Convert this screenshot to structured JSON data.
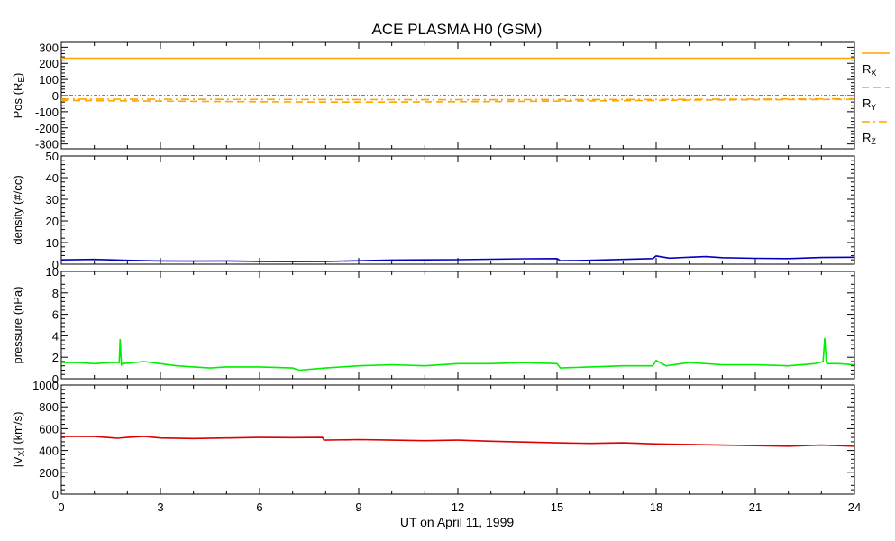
{
  "title": "ACE PLASMA H0 (GSM)",
  "xlabel": "UT on April 11, 1999",
  "x_ticks": [
    "0",
    "3",
    "6",
    "9",
    "12",
    "15",
    "18",
    "21",
    "24"
  ],
  "chart_data": [
    {
      "type": "line",
      "ylabel": "Pos (RE)",
      "ylabel_main": "Pos (R",
      "ylabel_sub": "E",
      "ylabel_close": ")",
      "xlim": [
        0,
        24
      ],
      "ylim": [
        -330,
        330
      ],
      "yticks": [
        -300,
        -200,
        -100,
        0,
        100,
        200,
        300
      ],
      "zero_line": true,
      "series": [
        {
          "name": "RX",
          "name_main": "R",
          "name_sub": "X",
          "color": "#ffa500",
          "dash": "solid",
          "x": [
            0,
            24
          ],
          "y": [
            232,
            232
          ]
        },
        {
          "name": "RY",
          "name_main": "R",
          "name_sub": "Y",
          "color": "#ffa500",
          "dash": "dashed",
          "x": [
            0,
            2,
            4,
            6,
            8,
            10,
            12,
            14,
            16,
            18,
            20,
            22,
            24
          ],
          "y": [
            -30,
            -33,
            -36,
            -38,
            -40,
            -40,
            -38,
            -36,
            -33,
            -30,
            -27,
            -25,
            -24
          ]
        },
        {
          "name": "RZ",
          "name_main": "R",
          "name_sub": "Z",
          "color": "#ffa500",
          "dash": "dashdot",
          "x": [
            0,
            6,
            12,
            18,
            24
          ],
          "y": [
            -22,
            -24,
            -26,
            -24,
            -20
          ]
        }
      ]
    },
    {
      "type": "line",
      "ylabel": "density (#/cc)",
      "xlim": [
        0,
        24
      ],
      "ylim": [
        0,
        50
      ],
      "yticks": [
        0,
        10,
        20,
        30,
        40,
        50
      ],
      "series": [
        {
          "name": "",
          "color": "#0000c0",
          "dash": "solid",
          "x": [
            0,
            1,
            2,
            3,
            4,
            5,
            6,
            7,
            8,
            9,
            10,
            11,
            12,
            13,
            14,
            15,
            15.1,
            16,
            17,
            17.9,
            18,
            18.4,
            19,
            19.5,
            20,
            21,
            22,
            23,
            24
          ],
          "y": [
            2.0,
            2.2,
            1.8,
            1.5,
            1.4,
            1.5,
            1.3,
            1.2,
            1.3,
            1.6,
            1.9,
            2.0,
            2.1,
            2.3,
            2.5,
            2.6,
            1.6,
            1.8,
            2.2,
            2.6,
            3.8,
            2.8,
            3.2,
            3.5,
            3.0,
            2.7,
            2.6,
            3.1,
            3.2
          ]
        }
      ]
    },
    {
      "type": "line",
      "ylabel": "pressure (nPa)",
      "xlim": [
        0,
        24
      ],
      "ylim": [
        0,
        10
      ],
      "yticks": [
        0,
        2,
        4,
        6,
        8,
        10
      ],
      "series": [
        {
          "name": "",
          "color": "#00ee00",
          "dash": "solid",
          "x": [
            0,
            0.5,
            1,
            1.5,
            1.75,
            1.78,
            1.82,
            1.85,
            2.2,
            2.5,
            3,
            3.5,
            4,
            4.5,
            5,
            6,
            7,
            7.2,
            8,
            9,
            10,
            11,
            12,
            13,
            14,
            15,
            15.1,
            16,
            17,
            17.9,
            18,
            18.3,
            19,
            20,
            21,
            22,
            22.8,
            23.05,
            23.1,
            23.15,
            23.2,
            23.5,
            24
          ],
          "y": [
            1.5,
            1.5,
            1.4,
            1.5,
            1.5,
            3.7,
            1.3,
            1.4,
            1.5,
            1.6,
            1.4,
            1.2,
            1.1,
            1.0,
            1.1,
            1.1,
            1.0,
            0.8,
            1.0,
            1.2,
            1.3,
            1.2,
            1.4,
            1.4,
            1.5,
            1.4,
            1.0,
            1.1,
            1.2,
            1.2,
            1.7,
            1.2,
            1.5,
            1.3,
            1.3,
            1.2,
            1.4,
            1.6,
            3.8,
            1.5,
            1.4,
            1.4,
            1.3
          ]
        }
      ]
    },
    {
      "type": "line",
      "ylabel": "|VX| (km/s)",
      "ylabel_main": "|V",
      "ylabel_sub": "X",
      "ylabel_close": "| (km/s)",
      "xlim": [
        0,
        24
      ],
      "ylim": [
        0,
        1000
      ],
      "yticks": [
        0,
        200,
        400,
        600,
        800,
        1000
      ],
      "series": [
        {
          "name": "",
          "color": "#dd0000",
          "dash": "solid",
          "x": [
            0,
            1,
            1.7,
            2,
            2.5,
            3,
            4,
            5,
            6,
            7,
            7.9,
            7.95,
            9,
            10,
            11,
            12,
            13,
            14,
            15,
            16,
            17,
            18,
            19,
            20,
            21,
            22,
            23,
            24
          ],
          "y": [
            530,
            528,
            512,
            520,
            530,
            515,
            510,
            515,
            520,
            518,
            520,
            495,
            500,
            495,
            490,
            495,
            485,
            478,
            470,
            465,
            470,
            460,
            455,
            450,
            445,
            440,
            450,
            440
          ]
        }
      ]
    }
  ]
}
